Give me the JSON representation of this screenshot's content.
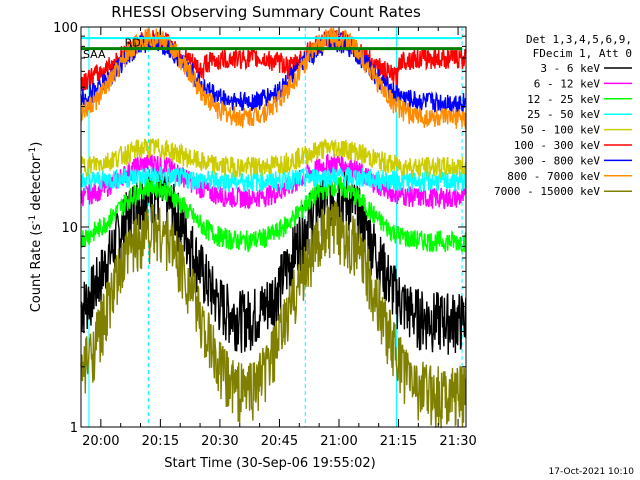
{
  "chart_data": {
    "type": "line",
    "title": "RHESSI Observing Summary Count Rates",
    "xlabel": "Start Time (30-Sep-06 19:55:02)",
    "ylabel_main": "Count Rate (s",
    "ylabel_sup": "-1",
    "ylabel_tail": " detector",
    "ylabel_close": ")",
    "y_scale": "log",
    "ylim": [
      1,
      100
    ],
    "xlim_minutes": [
      0,
      97
    ],
    "y_ticks": [
      {
        "value": 1,
        "label": "1"
      },
      {
        "value": 10,
        "label": "10"
      },
      {
        "value": 100,
        "label": "100"
      }
    ],
    "x_ticks": [
      {
        "minute": 5,
        "label": "20:00"
      },
      {
        "minute": 20,
        "label": "20:15"
      },
      {
        "minute": 35,
        "label": "20:30"
      },
      {
        "minute": 50,
        "label": "20:45"
      },
      {
        "minute": 65,
        "label": "21:00"
      },
      {
        "minute": 80,
        "label": "21:15"
      },
      {
        "minute": 95,
        "label": "21:30"
      }
    ],
    "legend_header": [
      "Det 1,3,4,5,6,9,",
      "FDecim 1, Att 0"
    ],
    "series": [
      {
        "name": "3 - 6 keV",
        "color": "#000000",
        "peak": 15,
        "base": 3.5
      },
      {
        "name": "6 - 12 keV",
        "color": "#ff00ff",
        "peak": 21,
        "base": 14
      },
      {
        "name": "12 - 25 keV",
        "color": "#00ff00",
        "peak": 16,
        "base": 8.5
      },
      {
        "name": "25 - 50 keV",
        "color": "#00ffff",
        "peak": 18,
        "base": 17
      },
      {
        "name": "50 - 100 keV",
        "color": "#cccc00",
        "peak": 25,
        "base": 20
      },
      {
        "name": "100 - 300 keV",
        "color": "#ff0000",
        "peak": 60,
        "base": 70
      },
      {
        "name": "300 - 800 keV",
        "color": "#0000ff",
        "peak": 85,
        "base": 42
      },
      {
        "name": "800 - 7000 keV",
        "color": "#ff8c00",
        "peak": 90,
        "base": 35
      },
      {
        "name": "7000 - 15000 keV",
        "color": "#808000",
        "peak": 10,
        "base": 1.5
      }
    ],
    "flags": [
      {
        "name": "SAA",
        "color": "#00ffff"
      },
      {
        "name": "RD",
        "color": "#008000"
      }
    ],
    "footer_date": "17-Oct-2021 10:10"
  }
}
